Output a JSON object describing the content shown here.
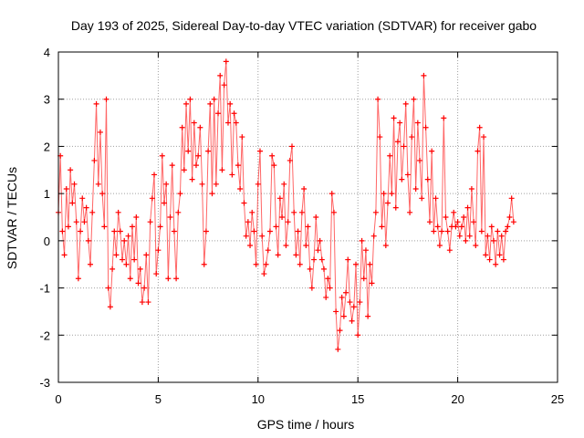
{
  "chart_data": {
    "type": "scatter",
    "title": "Day 193 of 2025, Sidereal Day-to-day VTEC variation (SDTVAR) for receiver gabo",
    "xlabel": "GPS time / hours",
    "ylabel": "SDTVAR / TECUs",
    "xlim": [
      0,
      25
    ],
    "ylim": [
      -3,
      4
    ],
    "xticks": [
      "0",
      "5",
      "10",
      "15",
      "20",
      "25"
    ],
    "yticks": [
      "-3",
      "-2",
      "-1",
      "0",
      "1",
      "2",
      "3",
      "4"
    ],
    "grid": true,
    "marker": "+",
    "series": [
      {
        "name": "SDTVAR",
        "color": "#ff0000",
        "points": [
          [
            0.0,
            0.6
          ],
          [
            0.1,
            1.8
          ],
          [
            0.2,
            0.2
          ],
          [
            0.3,
            -0.3
          ],
          [
            0.4,
            1.1
          ],
          [
            0.5,
            0.3
          ],
          [
            0.6,
            1.5
          ],
          [
            0.7,
            0.8
          ],
          [
            0.8,
            1.2
          ],
          [
            0.9,
            0.4
          ],
          [
            1.0,
            -0.8
          ],
          [
            1.1,
            0.2
          ],
          [
            1.2,
            0.9
          ],
          [
            1.3,
            0.4
          ],
          [
            1.4,
            0.7
          ],
          [
            1.5,
            0.0
          ],
          [
            1.6,
            -0.5
          ],
          [
            1.7,
            0.6
          ],
          [
            1.8,
            1.7
          ],
          [
            1.9,
            2.9
          ],
          [
            2.0,
            1.2
          ],
          [
            2.1,
            2.3
          ],
          [
            2.2,
            1.0
          ],
          [
            2.3,
            0.3
          ],
          [
            2.4,
            3.0
          ],
          [
            2.5,
            -1.0
          ],
          [
            2.6,
            -1.4
          ],
          [
            2.7,
            -0.6
          ],
          [
            2.8,
            0.2
          ],
          [
            2.9,
            -0.3
          ],
          [
            3.0,
            0.6
          ],
          [
            3.1,
            0.2
          ],
          [
            3.2,
            -0.4
          ],
          [
            3.3,
            0.0
          ],
          [
            3.4,
            -0.5
          ],
          [
            3.5,
            0.1
          ],
          [
            3.6,
            -0.8
          ],
          [
            3.7,
            0.3
          ],
          [
            3.8,
            -0.4
          ],
          [
            3.9,
            0.5
          ],
          [
            4.0,
            -0.9
          ],
          [
            4.1,
            -0.6
          ],
          [
            4.2,
            -1.3
          ],
          [
            4.3,
            -1.0
          ],
          [
            4.4,
            -0.3
          ],
          [
            4.5,
            -1.3
          ],
          [
            4.6,
            0.4
          ],
          [
            4.7,
            0.9
          ],
          [
            4.8,
            1.4
          ],
          [
            4.9,
            -0.7
          ],
          [
            5.0,
            -0.2
          ],
          [
            5.1,
            0.3
          ],
          [
            5.2,
            1.8
          ],
          [
            5.3,
            0.8
          ],
          [
            5.4,
            1.2
          ],
          [
            5.5,
            -0.8
          ],
          [
            5.6,
            0.5
          ],
          [
            5.7,
            1.6
          ],
          [
            5.8,
            0.2
          ],
          [
            5.9,
            -0.8
          ],
          [
            6.0,
            0.6
          ],
          [
            6.1,
            1.0
          ],
          [
            6.2,
            2.4
          ],
          [
            6.3,
            1.5
          ],
          [
            6.4,
            2.9
          ],
          [
            6.5,
            1.9
          ],
          [
            6.6,
            3.0
          ],
          [
            6.7,
            1.3
          ],
          [
            6.8,
            2.5
          ],
          [
            6.9,
            1.6
          ],
          [
            7.0,
            1.8
          ],
          [
            7.1,
            2.4
          ],
          [
            7.2,
            1.2
          ],
          [
            7.3,
            -0.5
          ],
          [
            7.4,
            0.2
          ],
          [
            7.5,
            1.9
          ],
          [
            7.6,
            2.9
          ],
          [
            7.7,
            1.0
          ],
          [
            7.8,
            3.0
          ],
          [
            7.9,
            1.2
          ],
          [
            8.0,
            2.7
          ],
          [
            8.1,
            3.5
          ],
          [
            8.2,
            1.5
          ],
          [
            8.3,
            3.3
          ],
          [
            8.4,
            3.8
          ],
          [
            8.5,
            2.5
          ],
          [
            8.6,
            2.9
          ],
          [
            8.7,
            1.4
          ],
          [
            8.8,
            2.7
          ],
          [
            8.9,
            2.5
          ],
          [
            9.0,
            1.6
          ],
          [
            9.1,
            1.1
          ],
          [
            9.2,
            2.2
          ],
          [
            9.3,
            0.8
          ],
          [
            9.4,
            0.1
          ],
          [
            9.5,
            0.4
          ],
          [
            9.6,
            -0.1
          ],
          [
            9.7,
            0.6
          ],
          [
            9.8,
            0.2
          ],
          [
            9.9,
            -0.5
          ],
          [
            10.0,
            1.2
          ],
          [
            10.1,
            1.9
          ],
          [
            10.2,
            0.1
          ],
          [
            10.3,
            -0.7
          ],
          [
            10.4,
            -0.5
          ],
          [
            10.5,
            -0.2
          ],
          [
            10.6,
            0.2
          ],
          [
            10.7,
            1.8
          ],
          [
            10.8,
            1.6
          ],
          [
            10.9,
            0.3
          ],
          [
            11.0,
            -0.3
          ],
          [
            11.1,
            0.9
          ],
          [
            11.2,
            0.5
          ],
          [
            11.3,
            1.2
          ],
          [
            11.4,
            -0.1
          ],
          [
            11.5,
            0.4
          ],
          [
            11.6,
            1.7
          ],
          [
            11.7,
            2.0
          ],
          [
            11.8,
            0.6
          ],
          [
            11.9,
            -0.3
          ],
          [
            12.0,
            0.2
          ],
          [
            12.1,
            -0.5
          ],
          [
            12.2,
            0.6
          ],
          [
            12.3,
            1.1
          ],
          [
            12.4,
            -0.1
          ],
          [
            12.5,
            0.3
          ],
          [
            12.6,
            -0.6
          ],
          [
            12.7,
            -1.0
          ],
          [
            12.8,
            -0.4
          ],
          [
            12.9,
            0.5
          ],
          [
            13.0,
            -0.2
          ],
          [
            13.1,
            0.0
          ],
          [
            13.2,
            -0.4
          ],
          [
            13.3,
            -0.6
          ],
          [
            13.4,
            -1.2
          ],
          [
            13.5,
            -0.8
          ],
          [
            13.6,
            -1.0
          ],
          [
            13.7,
            1.0
          ],
          [
            13.8,
            0.6
          ],
          [
            13.9,
            -1.5
          ],
          [
            14.0,
            -2.3
          ],
          [
            14.1,
            -1.9
          ],
          [
            14.2,
            -1.2
          ],
          [
            14.3,
            -1.6
          ],
          [
            14.4,
            -1.1
          ],
          [
            14.5,
            -0.4
          ],
          [
            14.6,
            -1.3
          ],
          [
            14.7,
            -1.7
          ],
          [
            14.8,
            -1.4
          ],
          [
            14.9,
            -0.5
          ],
          [
            15.0,
            -2.0
          ],
          [
            15.1,
            -1.3
          ],
          [
            15.2,
            0.0
          ],
          [
            15.3,
            -0.8
          ],
          [
            15.4,
            -0.2
          ],
          [
            15.5,
            -1.6
          ],
          [
            15.6,
            -0.5
          ],
          [
            15.7,
            -0.9
          ],
          [
            15.8,
            0.1
          ],
          [
            15.9,
            0.6
          ],
          [
            16.0,
            3.0
          ],
          [
            16.1,
            2.2
          ],
          [
            16.2,
            0.3
          ],
          [
            16.3,
            1.0
          ],
          [
            16.4,
            -0.1
          ],
          [
            16.5,
            0.8
          ],
          [
            16.6,
            1.8
          ],
          [
            16.7,
            1.0
          ],
          [
            16.8,
            2.6
          ],
          [
            16.9,
            0.7
          ],
          [
            17.0,
            2.1
          ],
          [
            17.1,
            2.5
          ],
          [
            17.2,
            1.3
          ],
          [
            17.3,
            2.0
          ],
          [
            17.4,
            2.9
          ],
          [
            17.5,
            1.4
          ],
          [
            17.6,
            0.6
          ],
          [
            17.7,
            2.2
          ],
          [
            17.8,
            3.0
          ],
          [
            17.9,
            1.1
          ],
          [
            18.0,
            2.5
          ],
          [
            18.1,
            1.7
          ],
          [
            18.2,
            0.9
          ],
          [
            18.3,
            3.5
          ],
          [
            18.4,
            2.4
          ],
          [
            18.5,
            1.3
          ],
          [
            18.6,
            0.4
          ],
          [
            18.7,
            1.9
          ],
          [
            18.8,
            0.2
          ],
          [
            18.9,
            0.9
          ],
          [
            19.0,
            0.3
          ],
          [
            19.1,
            -0.1
          ],
          [
            19.2,
            0.2
          ],
          [
            19.3,
            2.6
          ],
          [
            19.4,
            0.5
          ],
          [
            19.5,
            0.2
          ],
          [
            19.6,
            -0.2
          ],
          [
            19.7,
            0.3
          ],
          [
            19.8,
            0.6
          ],
          [
            19.9,
            0.3
          ],
          [
            20.0,
            0.4
          ],
          [
            20.1,
            0.1
          ],
          [
            20.2,
            0.3
          ],
          [
            20.3,
            0.5
          ],
          [
            20.4,
            0.0
          ],
          [
            20.5,
            0.7
          ],
          [
            20.6,
            0.1
          ],
          [
            20.7,
            1.1
          ],
          [
            20.8,
            0.4
          ],
          [
            20.9,
            -0.1
          ],
          [
            21.0,
            1.9
          ],
          [
            21.1,
            2.4
          ],
          [
            21.2,
            0.2
          ],
          [
            21.3,
            2.2
          ],
          [
            21.4,
            -0.3
          ],
          [
            21.5,
            0.1
          ],
          [
            21.6,
            -0.4
          ],
          [
            21.7,
            0.3
          ],
          [
            21.8,
            0.0
          ],
          [
            21.9,
            -0.5
          ],
          [
            22.0,
            0.2
          ],
          [
            22.1,
            -0.3
          ],
          [
            22.2,
            0.1
          ],
          [
            22.3,
            -0.4
          ],
          [
            22.4,
            0.2
          ],
          [
            22.5,
            0.3
          ],
          [
            22.6,
            0.5
          ],
          [
            22.7,
            0.9
          ],
          [
            22.8,
            0.4
          ]
        ]
      }
    ],
    "colors": {
      "series": "#ff0000",
      "grid": "#a0a0a0",
      "axes": "#000000"
    }
  }
}
